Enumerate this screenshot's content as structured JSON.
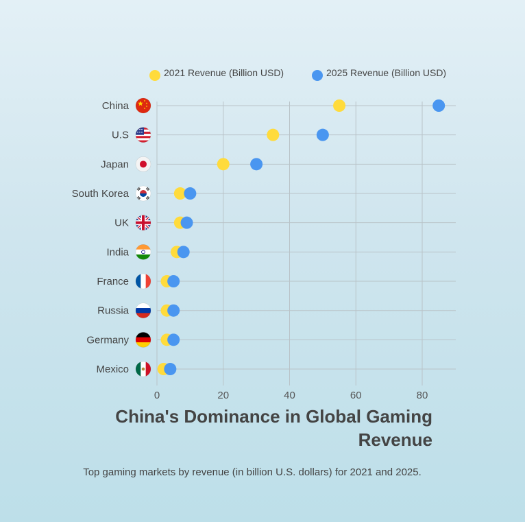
{
  "title": "China's Dominance in Global Gaming Revenue",
  "subtitle": "Top gaming markets by revenue (in billion U.S. dollars) for 2021 and 2025.",
  "colors": {
    "series_2021": "#ffdb3c",
    "series_2025": "#4a96f0",
    "grid": "#b9c3c8",
    "text": "#444444"
  },
  "chart_data": {
    "type": "scatter",
    "title": "China's Dominance in Global Gaming Revenue",
    "subtitle": "Top gaming markets by revenue (in billion U.S. dollars) for 2021 and 2025.",
    "categories": [
      "China",
      "U.S",
      "Japan",
      "South Korea",
      "UK",
      "India",
      "France",
      "Russia",
      "Germany",
      "Mexico"
    ],
    "flags": [
      "china-flag-icon",
      "us-flag-icon",
      "japan-flag-icon",
      "south-korea-flag-icon",
      "uk-flag-icon",
      "india-flag-icon",
      "france-flag-icon",
      "russia-flag-icon",
      "germany-flag-icon",
      "mexico-flag-icon"
    ],
    "series": [
      {
        "name": "2021 Revenue (Billion USD)",
        "values": [
          55,
          35,
          20,
          7,
          7,
          6,
          3,
          3,
          3,
          2
        ]
      },
      {
        "name": "2025 Revenue (Billion USD)",
        "values": [
          85,
          50,
          30,
          10,
          9,
          8,
          5,
          5,
          5,
          4
        ]
      }
    ],
    "xlim": [
      0,
      90
    ],
    "xticks": [
      0,
      20,
      40,
      60,
      80
    ],
    "grid": true,
    "legend": "top"
  }
}
